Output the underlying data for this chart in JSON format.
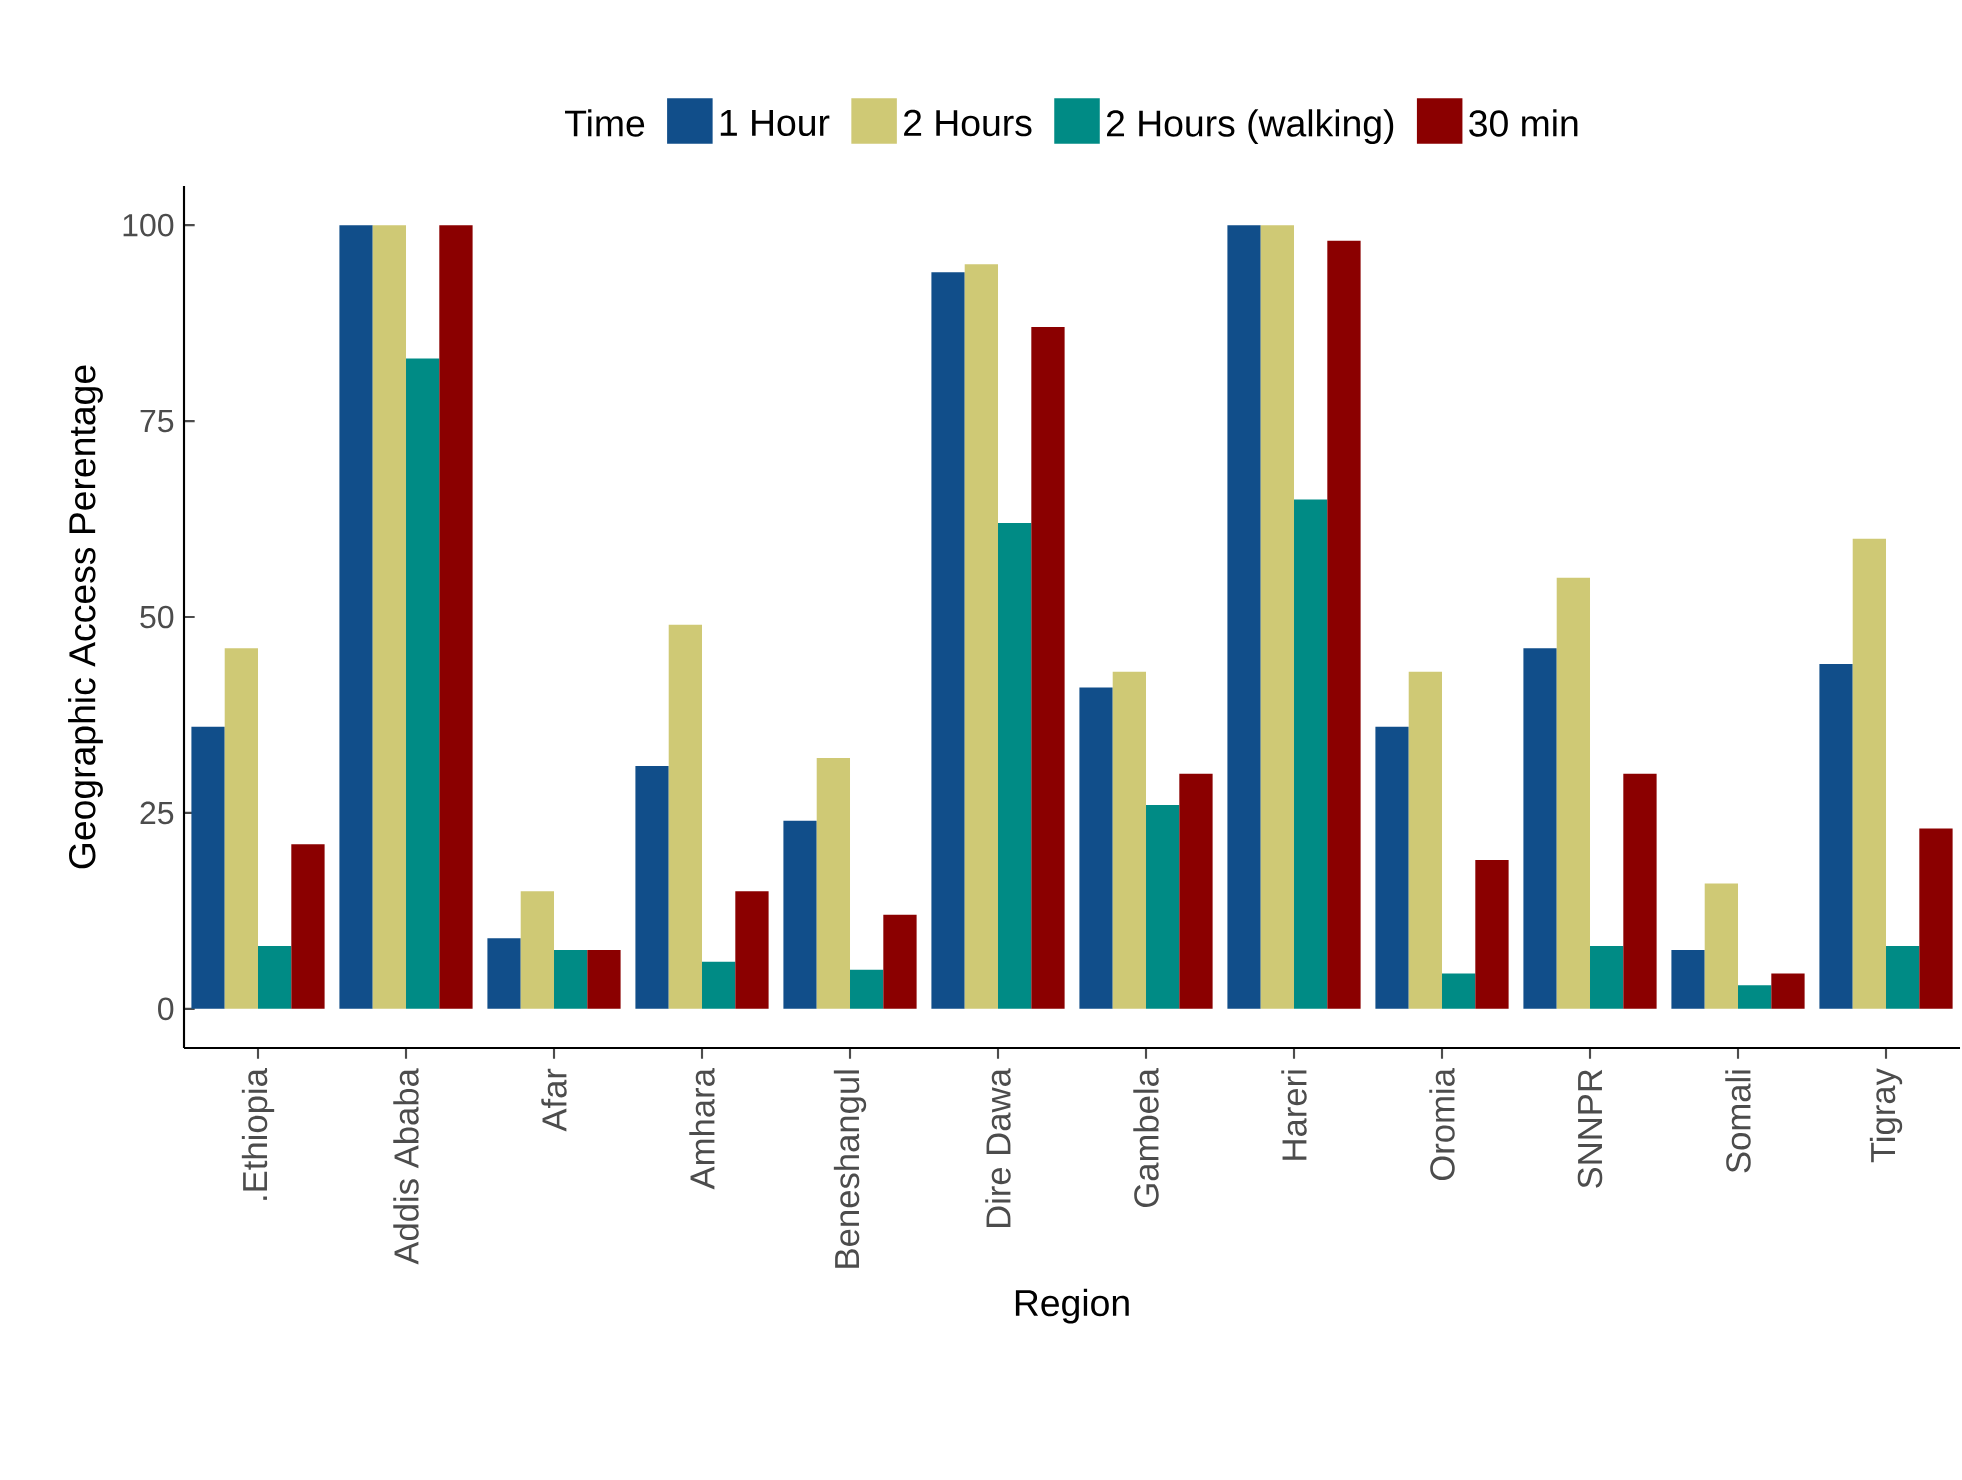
{
  "chart_data": {
    "type": "bar",
    "xlabel": "Region",
    "ylabel": "Geographic Access Perentage",
    "legend_title": "Time",
    "legend": "top",
    "categories": [
      ".Ethiopia",
      "Addis Ababa",
      "Afar",
      "Amhara",
      "Beneshangul",
      "Dire Dawa",
      "Gambela",
      "Hareri",
      "Oromia",
      "SNNPR",
      "Somali",
      "Tigray"
    ],
    "series": [
      {
        "name": "1 Hour",
        "color": "#114e8a",
        "values": [
          36,
          100,
          9,
          31,
          24,
          94,
          41,
          100,
          36,
          46,
          7.5,
          44
        ]
      },
      {
        "name": "2 Hours",
        "color": "#cfc975",
        "values": [
          46,
          100,
          15,
          49,
          32,
          95,
          43,
          100,
          43,
          55,
          16,
          60
        ]
      },
      {
        "name": "2 Hours (walking)",
        "color": "#008b85",
        "values": [
          8,
          83,
          7.5,
          6,
          5,
          62,
          26,
          65,
          4.5,
          8,
          3,
          8
        ]
      },
      {
        "name": "30 min",
        "color": "#8b0000",
        "values": [
          21,
          100,
          7.5,
          15,
          12,
          87,
          30,
          98,
          19,
          30,
          4.5,
          23
        ]
      }
    ],
    "ylim": [
      -5,
      105
    ],
    "yticks": [
      0,
      25,
      50,
      75,
      100
    ],
    "grid": false
  }
}
